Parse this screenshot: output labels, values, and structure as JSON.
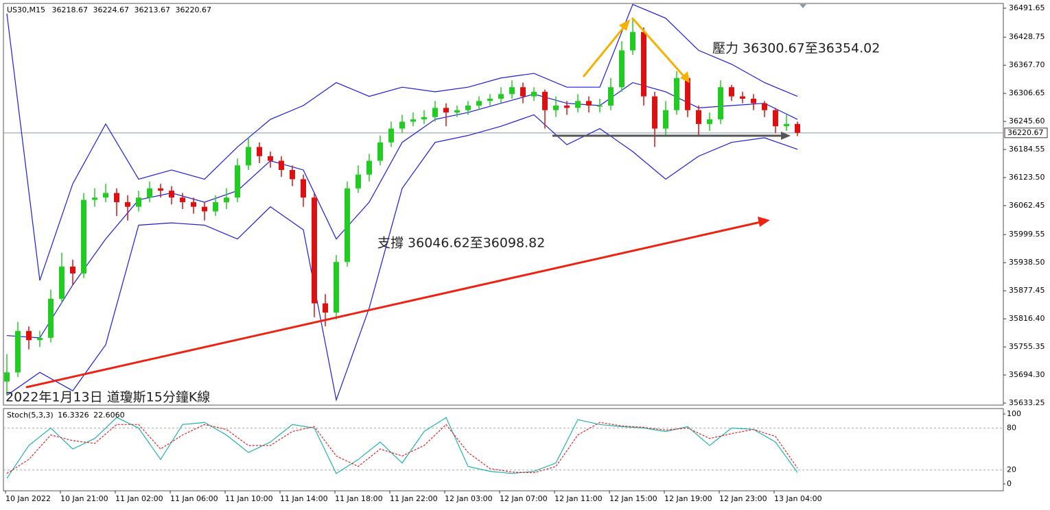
{
  "chart_data": {
    "type": "candlestick",
    "symbol": "US30,M15",
    "header_values": [
      36218.67,
      36224.67,
      36213.67,
      36220.67
    ],
    "annotations": [
      "壓力 36300.67至36354.02",
      "支撐 36046.62至36098.82",
      "2022年1月13日 道瓊斯15分鐘K線"
    ],
    "up_color": "#22cc22",
    "down_color": "#dd1111",
    "open": [
      35680,
      35700,
      35790,
      35770,
      35775,
      35860,
      35930,
      35915,
      36075,
      36080,
      36090,
      36070,
      36060,
      36080,
      36100,
      36095,
      36080,
      36070,
      36060,
      36050,
      36070,
      36080,
      36150,
      36190,
      36170,
      36160,
      36140,
      36120,
      36080,
      35850,
      35830,
      35940,
      36100,
      36130,
      36160,
      36200,
      36230,
      36245,
      36250,
      36255,
      36275,
      36265,
      36270,
      36280,
      36290,
      36295,
      36305,
      36320,
      36300,
      36310,
      36270,
      36280,
      36275,
      36290,
      36280,
      36280,
      36320,
      36400,
      36440,
      36300,
      36230,
      36270,
      36340,
      36270,
      36240,
      36250,
      36320,
      36300,
      36295,
      36285,
      36270,
      36235,
      36240
    ],
    "high": [
      35740,
      35810,
      35800,
      35790,
      35880,
      35960,
      35945,
      36090,
      36100,
      36110,
      36100,
      36085,
      36095,
      36115,
      36110,
      36105,
      36090,
      36080,
      36070,
      36085,
      36100,
      36165,
      36210,
      36200,
      36180,
      36170,
      36150,
      36130,
      36090,
      35870,
      35955,
      36115,
      36150,
      36175,
      36215,
      36245,
      36260,
      36265,
      36270,
      36290,
      36285,
      36280,
      36290,
      36300,
      36305,
      36320,
      36335,
      36330,
      36320,
      36315,
      36300,
      36290,
      36305,
      36300,
      36295,
      36340,
      36420,
      36470,
      36450,
      36310,
      36290,
      36355,
      36345,
      36280,
      36265,
      36335,
      36325,
      36310,
      36305,
      36290,
      36275,
      36260,
      36245
    ],
    "low": [
      35650,
      35690,
      35750,
      35755,
      35765,
      35850,
      35890,
      35905,
      36060,
      36070,
      36040,
      36030,
      36050,
      36070,
      36080,
      36065,
      36055,
      36045,
      36030,
      36040,
      36055,
      36070,
      36140,
      36155,
      36145,
      36125,
      36105,
      36060,
      35820,
      35800,
      35815,
      35930,
      36090,
      36115,
      36150,
      36190,
      36220,
      36235,
      36240,
      36245,
      36235,
      36255,
      36260,
      36270,
      36280,
      36285,
      36295,
      36285,
      36290,
      36230,
      36255,
      36260,
      36265,
      36265,
      36265,
      36270,
      36310,
      36390,
      36280,
      36190,
      36215,
      36260,
      36255,
      36215,
      36225,
      36240,
      36290,
      36285,
      36270,
      36255,
      36220,
      36225,
      36213.67
    ],
    "close": [
      35700,
      35790,
      35770,
      35775,
      35860,
      35930,
      35915,
      36075,
      36080,
      36090,
      36070,
      36060,
      36080,
      36100,
      36095,
      36080,
      36070,
      36060,
      36050,
      36070,
      36080,
      36150,
      36190,
      36170,
      36160,
      36140,
      36120,
      36080,
      35850,
      35830,
      35940,
      36100,
      36130,
      36160,
      36200,
      36230,
      36245,
      36250,
      36255,
      36275,
      36265,
      36270,
      36280,
      36290,
      36295,
      36305,
      36320,
      36300,
      36310,
      36270,
      36280,
      36275,
      36290,
      36280,
      36280,
      36320,
      36400,
      36440,
      36300,
      36230,
      36270,
      36340,
      36270,
      36240,
      36250,
      36320,
      36300,
      36295,
      36285,
      36270,
      36235,
      36240,
      36220.67
    ],
    "bands": {
      "color": "#1a1ae0",
      "x": [
        0,
        3,
        6,
        9,
        12,
        15,
        18,
        21,
        24,
        27,
        30,
        33,
        36,
        39,
        42,
        45,
        48,
        51,
        54,
        57,
        60,
        63,
        66,
        69,
        72
      ],
      "series": [
        {
          "values": [
            36480,
            35900,
            36110,
            36240,
            36120,
            36140,
            36120,
            36190,
            36250,
            36280,
            36330,
            36300,
            36320,
            36310,
            36320,
            36340,
            36350,
            36320,
            36320,
            36500,
            36470,
            36400,
            36370,
            36330,
            36300
          ]
        },
        {
          "values": [
            35780,
            35775,
            35890,
            35990,
            36075,
            36090,
            36070,
            36095,
            36160,
            36140,
            35990,
            36070,
            36200,
            36250,
            36265,
            36285,
            36305,
            36285,
            36280,
            36330,
            36310,
            36275,
            36280,
            36285,
            36250
          ]
        },
        {
          "values": [
            35650,
            35700,
            35660,
            35760,
            36020,
            36025,
            36020,
            35990,
            36060,
            36010,
            35640,
            35840,
            36100,
            36200,
            36215,
            36235,
            36260,
            36195,
            36230,
            36180,
            36120,
            36170,
            36200,
            36210,
            36185
          ]
        }
      ]
    },
    "ylim": [
      35628.8,
      36502.1
    ],
    "yticks": [
      36491.65,
      36428.75,
      {
        "value": 36367.7,
        "label": "36367.70"
      },
      36306.65,
      {
        "value": 36245.6,
        "label": "36245.60"
      },
      36184.55,
      {
        "value": 36123.5,
        "label": "36123.50"
      },
      36062.45,
      35999.55,
      {
        "value": 35938.5,
        "label": "35938.50"
      },
      35877.45,
      {
        "value": 35816.4,
        "label": "35816.40"
      },
      35755.35,
      {
        "value": 35694.3,
        "label": "35694.30"
      },
      35633.25
    ],
    "last_price": 36220.67,
    "xtick_labels": [
      "10 Jan 2022",
      "10 Jan 21:00",
      "11 Jan 02:00",
      "11 Jan 06:00",
      "11 Jan 10:00",
      "11 Jan 14:00",
      "11 Jan 18:00",
      "11 Jan 22:00",
      "12 Jan 03:00",
      "12 Jan 07:00",
      "12 Jan 11:00",
      "12 Jan 15:00",
      "12 Jan 19:00",
      "12 Jan 23:00",
      "13 Jan 04:00"
    ],
    "stoch": {
      "label": "Stoch(5,3,3)",
      "values_shown": [
        16.3326,
        {
          "value": 22.606,
          "label": "22.6060"
        }
      ],
      "x": [
        0,
        2,
        4,
        6,
        8,
        10,
        12,
        14,
        16,
        18,
        20,
        22,
        24,
        26,
        28,
        30,
        32,
        34,
        36,
        38,
        40,
        42,
        44,
        46,
        48,
        50,
        52,
        54,
        56,
        58,
        60,
        62,
        64,
        66,
        68,
        70,
        72
      ],
      "series": [
        {
          "color": "#20b2aa",
          "values": [
            8,
            55,
            80,
            50,
            65,
            95,
            80,
            35,
            85,
            88,
            70,
            45,
            60,
            85,
            80,
            15,
            35,
            60,
            30,
            75,
            95,
            25,
            18,
            15,
            18,
            30,
            92,
            85,
            82,
            80,
            75,
            82,
            55,
            80,
            78,
            60,
            16.3326
          ]
        },
        {
          "color": "#e02020",
          "values": [
            15,
            35,
            70,
            62,
            58,
            85,
            85,
            50,
            70,
            85,
            78,
            55,
            55,
            75,
            82,
            40,
            25,
            50,
            40,
            55,
            85,
            45,
            22,
            17,
            16,
            25,
            70,
            88,
            83,
            81,
            77,
            80,
            65,
            72,
            78,
            68,
            22.606
          ]
        }
      ],
      "ylim": [
        0,
        100
      ],
      "yticks": [
        100,
        80,
        20,
        0
      ]
    }
  }
}
